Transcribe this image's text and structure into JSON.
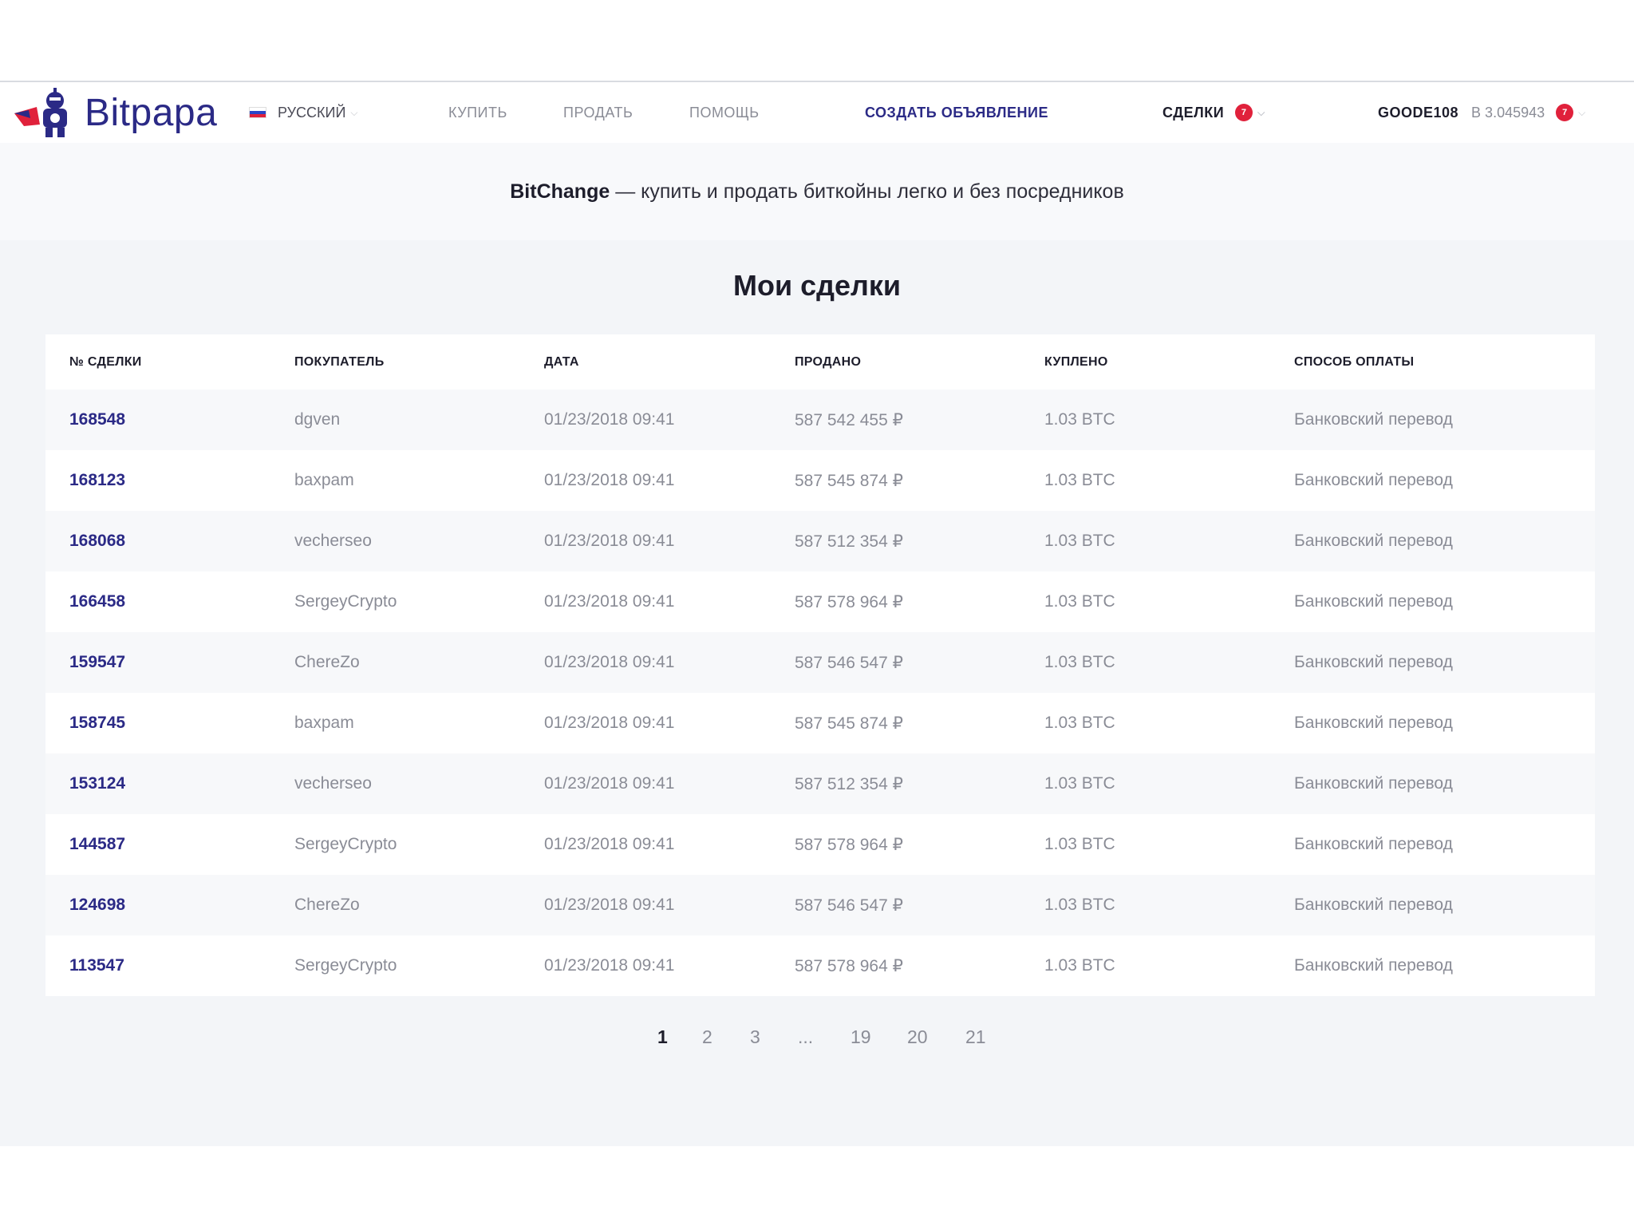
{
  "header": {
    "logo_text": "Bitpapa",
    "language": "РУССКИЙ",
    "nav": {
      "buy": "КУПИТЬ",
      "sell": "ПРОДАТЬ",
      "help": "ПОМОЩЬ",
      "create_ad": "СОЗДАТЬ ОБЪЯВЛЕНИЕ"
    },
    "deals_label": "СДЕЛКИ",
    "deals_badge": "7",
    "username": "GOODE108",
    "balance": "B 3.045943",
    "user_badge": "7",
    "colors": {
      "brand": "#2b2a86",
      "badge": "#e0213b"
    }
  },
  "hero": {
    "brand": "BitChange",
    "tagline": " — купить и продать биткойны легко и без посредников"
  },
  "main": {
    "title": "Мои сделки",
    "columns": [
      "№ СДЕЛКИ",
      "ПОКУПАТЕЛЬ",
      "ДАТА",
      "ПРОДАНО",
      "КУПЛЕНО",
      "СПОСОБ ОПЛАТЫ"
    ],
    "rows": [
      [
        "168548",
        "dgven",
        "01/23/2018 09:41",
        "587 542 455 ₽",
        "1.03 BTC",
        "Банковский перевод"
      ],
      [
        "168123",
        "baxpam",
        "01/23/2018 09:41",
        "587 545 874 ₽",
        "1.03 BTC",
        "Банковский перевод"
      ],
      [
        "168068",
        "vecherseo",
        "01/23/2018 09:41",
        "587 512 354 ₽",
        "1.03 BTC",
        "Банковский перевод"
      ],
      [
        "166458",
        "SergeyCrypto",
        "01/23/2018 09:41",
        "587 578 964 ₽",
        "1.03 BTC",
        "Банковский перевод"
      ],
      [
        "159547",
        "ChereZo",
        "01/23/2018 09:41",
        "587 546 547 ₽",
        "1.03 BTC",
        "Банковский перевод"
      ],
      [
        "158745",
        "baxpam",
        "01/23/2018 09:41",
        "587 545 874 ₽",
        "1.03 BTC",
        "Банковский перевод"
      ],
      [
        "153124",
        "vecherseo",
        "01/23/2018 09:41",
        "587 512 354 ₽",
        "1.03 BTC",
        "Банковский перевод"
      ],
      [
        "144587",
        "SergeyCrypto",
        "01/23/2018 09:41",
        "587 578 964 ₽",
        "1.03 BTC",
        "Банковский перевод"
      ],
      [
        "124698",
        "ChereZo",
        "01/23/2018 09:41",
        "587 546 547 ₽",
        "1.03 BTC",
        "Банковский перевод"
      ],
      [
        "113547",
        "SergeyCrypto",
        "01/23/2018 09:41",
        "587 578 964 ₽",
        "1.03 BTC",
        "Банковский перевод"
      ]
    ]
  },
  "pagination": {
    "pages": [
      "1",
      "2",
      "3",
      "...",
      "19",
      "20",
      "21"
    ],
    "current": "1"
  }
}
